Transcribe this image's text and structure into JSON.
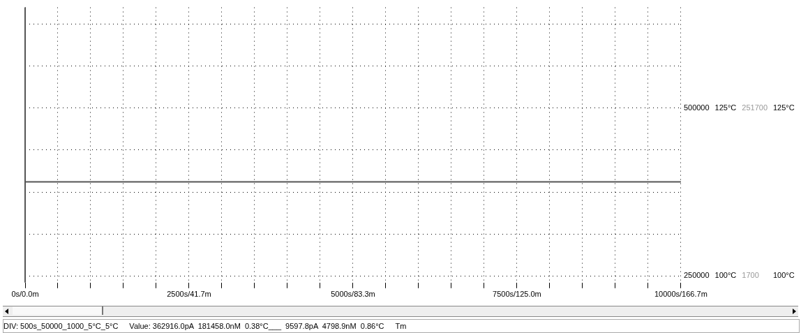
{
  "chart_data": {
    "type": "line",
    "categories": [
      "0s/0.0m",
      null,
      null,
      null,
      null,
      "2500s/41.7m",
      null,
      null,
      null,
      null,
      "5000s/83.3m",
      null,
      null,
      null,
      null,
      "7500s/125.0m",
      null,
      null,
      null,
      null,
      "10000s/166.7m"
    ],
    "series": [
      {
        "color": "#555555",
        "values": [
          390000,
          390000,
          390000,
          390000,
          390000,
          390000,
          390000,
          390000,
          390000,
          390000,
          390000,
          390000,
          390000,
          390000,
          390000,
          390000,
          390000,
          390000,
          390000,
          390000,
          390000
        ],
        "axis": "y"
      }
    ],
    "ylim": [
      240000,
      650000
    ],
    "yticks": [
      250000,
      {
        "value": 312500,
        "label": null
      },
      {
        "value": 375000,
        "label": null
      },
      {
        "value": 437500,
        "label": null
      },
      500000,
      {
        "value": 562500,
        "label": null
      },
      {
        "value": 625000,
        "label": null
      }
    ],
    "y2lim": [
      99,
      140
    ],
    "y2ticks": [
      {
        "value": 100,
        "label": "100°C"
      },
      {
        "value": 125,
        "label": "125°C"
      }
    ],
    "y3lim": [
      -8300,
      401700
    ],
    "y3ticks": [
      1700,
      251700
    ],
    "grid": true,
    "legend": false,
    "marker": "none",
    "line_style": "solid",
    "annotations": [
      "125°C",
      "100°C",
      "DIV: 500s_50000_1000_5°C_5°C",
      "Value: 362916.0pA  181458.0nM  0.38°C___  9597.8pA  4798.9nM  0.86°C",
      "Tm"
    ]
  }
}
